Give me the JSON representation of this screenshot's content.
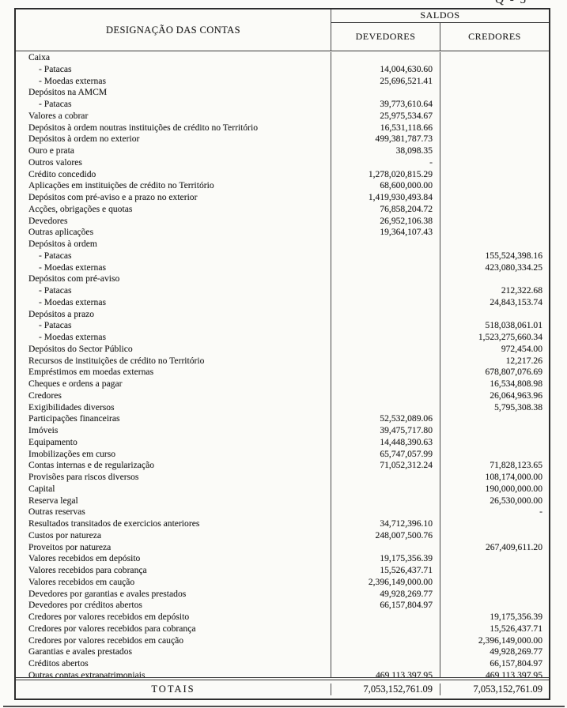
{
  "page": {
    "corner_label": "Q - 5"
  },
  "table": {
    "header": {
      "designation": "DESIGNAÇÃO DAS CONTAS",
      "saldos": "SALDOS",
      "devedores": "DEVEDORES",
      "credores": "CREDORES"
    },
    "rows": [
      {
        "label": "Caixa",
        "indent": 0,
        "dev": "",
        "cred": ""
      },
      {
        "label": "- Patacas",
        "indent": 1,
        "dev": "14,004,630.60",
        "cred": ""
      },
      {
        "label": "- Moedas externas",
        "indent": 1,
        "dev": "25,696,521.41",
        "cred": ""
      },
      {
        "label": "Depósitos na AMCM",
        "indent": 0,
        "dev": "",
        "cred": ""
      },
      {
        "label": "- Patacas",
        "indent": 1,
        "dev": "39,773,610.64",
        "cred": ""
      },
      {
        "label": "Valores a cobrar",
        "indent": 0,
        "dev": "25,975,534.67",
        "cred": ""
      },
      {
        "label": "Depósitos à ordem noutras instituições de crédito no Território",
        "indent": 0,
        "dev": "16,531,118.66",
        "cred": ""
      },
      {
        "label": "Depósitos à ordem no exterior",
        "indent": 0,
        "dev": "499,381,787.73",
        "cred": ""
      },
      {
        "label": "Ouro e prata",
        "indent": 0,
        "dev": "38,098.35",
        "cred": ""
      },
      {
        "label": "Outros valores",
        "indent": 0,
        "dev": "-",
        "cred": ""
      },
      {
        "label": "Crédito concedido",
        "indent": 0,
        "dev": "1,278,020,815.29",
        "cred": ""
      },
      {
        "label": "Aplicações em instituições de crédito no Território",
        "indent": 0,
        "dev": "68,600,000.00",
        "cred": ""
      },
      {
        "label": "Depósitos com pré-aviso e a prazo no exterior",
        "indent": 0,
        "dev": "1,419,930,493.84",
        "cred": ""
      },
      {
        "label": "Acções, obrigações e quotas",
        "indent": 0,
        "dev": "76,858,204.72",
        "cred": ""
      },
      {
        "label": "Devedores",
        "indent": 0,
        "dev": "26,952,106.38",
        "cred": ""
      },
      {
        "label": "Outras aplicações",
        "indent": 0,
        "dev": "19,364,107.43",
        "cred": ""
      },
      {
        "label": "Depósitos à ordem",
        "indent": 0,
        "dev": "",
        "cred": ""
      },
      {
        "label": "- Patacas",
        "indent": 1,
        "dev": "",
        "cred": "155,524,398.16"
      },
      {
        "label": "- Moedas externas",
        "indent": 1,
        "dev": "",
        "cred": "423,080,334.25"
      },
      {
        "label": "Depósitos com pré-aviso",
        "indent": 0,
        "dev": "",
        "cred": ""
      },
      {
        "label": "- Patacas",
        "indent": 1,
        "dev": "",
        "cred": "212,322.68"
      },
      {
        "label": "- Moedas externas",
        "indent": 1,
        "dev": "",
        "cred": "24,843,153.74"
      },
      {
        "label": "Depósitos a prazo",
        "indent": 0,
        "dev": "",
        "cred": ""
      },
      {
        "label": "- Patacas",
        "indent": 1,
        "dev": "",
        "cred": "518,038,061.01"
      },
      {
        "label": "- Moedas externas",
        "indent": 1,
        "dev": "",
        "cred": "1,523,275,660.34"
      },
      {
        "label": "Depósitos do Sector Público",
        "indent": 0,
        "dev": "",
        "cred": "972,454.00"
      },
      {
        "label": "Recursos de instituições de crédito no Território",
        "indent": 0,
        "dev": "",
        "cred": "12,217.26"
      },
      {
        "label": "Empréstimos em moedas externas",
        "indent": 0,
        "dev": "",
        "cred": "678,807,076.69"
      },
      {
        "label": "Cheques e ordens a pagar",
        "indent": 0,
        "dev": "",
        "cred": "16,534,808.98"
      },
      {
        "label": "Credores",
        "indent": 0,
        "dev": "",
        "cred": "26,064,963.96"
      },
      {
        "label": "Exigibilidades diversos",
        "indent": 0,
        "dev": "",
        "cred": "5,795,308.38"
      },
      {
        "label": "Participações financeiras",
        "indent": 0,
        "dev": "52,532,089.06",
        "cred": ""
      },
      {
        "label": "Imóveis",
        "indent": 0,
        "dev": "39,475,717.80",
        "cred": ""
      },
      {
        "label": "Equipamento",
        "indent": 0,
        "dev": "14,448,390.63",
        "cred": ""
      },
      {
        "label": "Imobilizações em curso",
        "indent": 0,
        "dev": "65,747,057.99",
        "cred": ""
      },
      {
        "label": "Contas internas e de regularização",
        "indent": 0,
        "dev": "71,052,312.24",
        "cred": "71,828,123.65"
      },
      {
        "label": "Provisões para riscos diversos",
        "indent": 0,
        "dev": "",
        "cred": "108,174,000.00"
      },
      {
        "label": "Capital",
        "indent": 0,
        "dev": "",
        "cred": "190,000,000.00"
      },
      {
        "label": "Reserva legal",
        "indent": 0,
        "dev": "",
        "cred": "26,530,000.00"
      },
      {
        "label": "Outras reservas",
        "indent": 0,
        "dev": "",
        "cred": "-"
      },
      {
        "label": "Resultados transitados de exercicios anteriores",
        "indent": 0,
        "dev": "34,712,396.10",
        "cred": ""
      },
      {
        "label": "Custos por natureza",
        "indent": 0,
        "dev": "248,007,500.76",
        "cred": ""
      },
      {
        "label": "Proveitos por natureza",
        "indent": 0,
        "dev": "",
        "cred": "267,409,611.20"
      },
      {
        "label": "Valores recebidos em depósito",
        "indent": 0,
        "dev": "19,175,356.39",
        "cred": ""
      },
      {
        "label": "Valores recebidos para cobrança",
        "indent": 0,
        "dev": "15,526,437.71",
        "cred": ""
      },
      {
        "label": "Valores recebidos em caução",
        "indent": 0,
        "dev": "2,396,149,000.00",
        "cred": ""
      },
      {
        "label": "Devedores por garantias e avales prestados",
        "indent": 0,
        "dev": "49,928,269.77",
        "cred": ""
      },
      {
        "label": "Devedores por créditos abertos",
        "indent": 0,
        "dev": "66,157,804.97",
        "cred": ""
      },
      {
        "label": "Credores por valores recebidos em depósito",
        "indent": 0,
        "dev": "",
        "cred": "19,175,356.39"
      },
      {
        "label": "Credores por valores recebidos para cobrança",
        "indent": 0,
        "dev": "",
        "cred": "15,526,437.71"
      },
      {
        "label": "Credores por valores recebidos em caução",
        "indent": 0,
        "dev": "",
        "cred": "2,396,149,000.00"
      },
      {
        "label": "Garantias e avales prestados",
        "indent": 0,
        "dev": "",
        "cred": "49,928,269.77"
      },
      {
        "label": "Créditos abertos",
        "indent": 0,
        "dev": "",
        "cred": "66,157,804.97"
      },
      {
        "label": "Outras contas extrapatrimoniais",
        "indent": 0,
        "dev": "469,113,397.95",
        "cred": "469,113,397.95"
      }
    ],
    "totals": {
      "label": "TOTAIS",
      "dev": "7,053,152,761.09",
      "cred": "7,053,152,761.09"
    }
  }
}
